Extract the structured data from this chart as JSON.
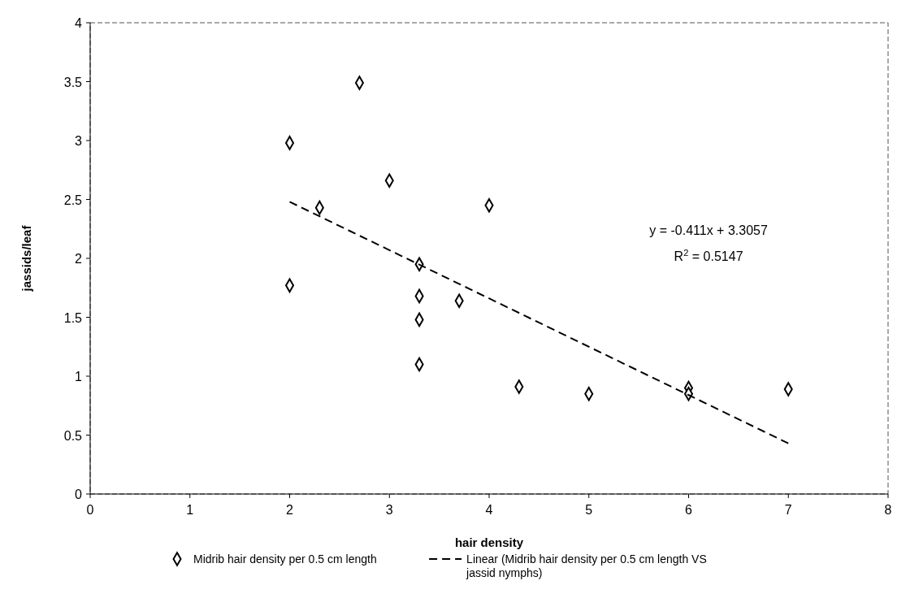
{
  "chart_data": {
    "type": "scatter",
    "xlabel": "hair density",
    "ylabel": "jassids/leaf",
    "xlim": [
      0,
      8
    ],
    "xticks": [
      0,
      1,
      2,
      3,
      4,
      5,
      6,
      7,
      8
    ],
    "ylim": [
      0,
      4
    ],
    "yticks": [
      0,
      0.5,
      1,
      1.5,
      2,
      2.5,
      3,
      3.5,
      4
    ],
    "grid": false,
    "legend": "bottom",
    "annotations": [
      "y = -0.411x + 3.3057",
      "R$^{2}$ = 0.5147"
    ],
    "series": [
      {
        "name": "Midrib hair density per 0.5 cm length",
        "marker": "diamond",
        "color": "#000000",
        "x": [
          2,
          2,
          2.3,
          2.7,
          3,
          3.3,
          3.3,
          3.3,
          3.3,
          3.7,
          4,
          4.3,
          5,
          6,
          6,
          7
        ],
        "values": [
          2.98,
          1.77,
          2.43,
          3.49,
          2.66,
          1.95,
          1.68,
          1.48,
          1.1,
          1.64,
          2.45,
          0.91,
          0.85,
          0.9,
          0.85,
          0.89
        ]
      },
      {
        "name": "Linear (Midrib hair density per 0.5 cm length VS jassid nymphs)",
        "type": "line",
        "marker": "none",
        "line_style": "dashed",
        "color": "#000000",
        "x": [
          2,
          7
        ],
        "values": [
          2.48,
          0.43
        ]
      }
    ]
  }
}
